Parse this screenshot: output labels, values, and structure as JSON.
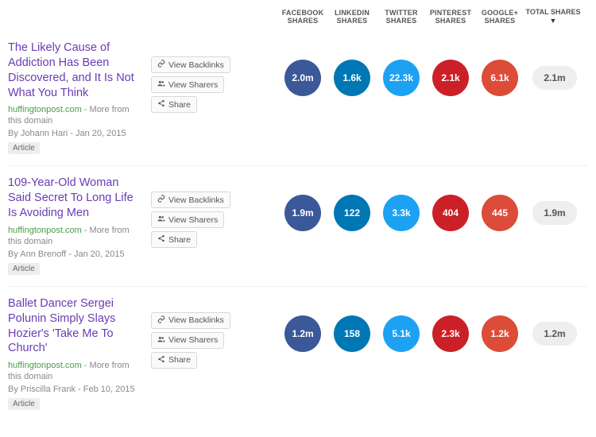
{
  "colors": {
    "facebook": "#3b5998",
    "linkedin": "#0077b5",
    "twitter": "#1da1f2",
    "pinterest": "#cb2027",
    "googleplus": "#dd4b39",
    "title": "#6a3bb5",
    "domain": "#4a9d4a",
    "muted": "#888888",
    "tag_bg": "#eeeeee",
    "total_bg": "#eeeeee",
    "border": "#f0f0f0"
  },
  "headers": {
    "facebook_l1": "FACEBOOK",
    "facebook_l2": "SHARES",
    "linkedin_l1": "LINKEDIN",
    "linkedin_l2": "SHARES",
    "twitter_l1": "TWITTER",
    "twitter_l2": "SHARES",
    "pinterest_l1": "PINTEREST",
    "pinterest_l2": "SHARES",
    "googleplus_l1": "GOOGLE+",
    "googleplus_l2": "SHARES",
    "total": "TOTAL SHARES"
  },
  "actions": {
    "backlinks": "View Backlinks",
    "sharers": "View Sharers",
    "share": "Share"
  },
  "labels": {
    "more_from": " - More from this domain",
    "tag": "Article"
  },
  "rows": [
    {
      "title": "The Likely Cause of Addiction Has Been Discovered, and It Is Not What You Think",
      "domain": "huffingtonpost.com",
      "byline": "By Johann Hari - Jan 20, 2015",
      "facebook": "2.0m",
      "linkedin": "1.6k",
      "twitter": "22.3k",
      "pinterest": "2.1k",
      "googleplus": "6.1k",
      "total": "2.1m"
    },
    {
      "title": "109-Year-Old Woman Said Secret To Long Life Is Avoiding Men",
      "domain": "huffingtonpost.com",
      "byline": "By Ann Brenoff - Jan 20, 2015",
      "facebook": "1.9m",
      "linkedin": "122",
      "twitter": "3.3k",
      "pinterest": "404",
      "googleplus": "445",
      "total": "1.9m"
    },
    {
      "title": "Ballet Dancer Sergei Polunin Simply Slays Hozier's 'Take Me To Church'",
      "domain": "huffingtonpost.com",
      "byline": "By Priscilla Frank - Feb 10, 2015",
      "facebook": "1.2m",
      "linkedin": "158",
      "twitter": "5.1k",
      "pinterest": "2.3k",
      "googleplus": "1.2k",
      "total": "1.2m"
    }
  ]
}
